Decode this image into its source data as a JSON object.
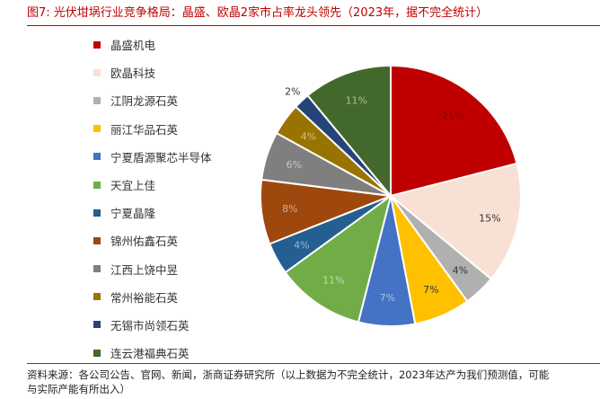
{
  "title": "图7:  光伏坩埚行业竞争格局：晶盛、欧晶2家市占率龙头领先（2023年，据不完全统计）",
  "chart_data": {
    "type": "pie",
    "title": "",
    "legend_position": "left",
    "data_labels": [
      "21%",
      "15%",
      "4%",
      "7%",
      "7%",
      "11%",
      "4%",
      "8%",
      "6%",
      "4%",
      "2%",
      "11%"
    ],
    "slices": [
      {
        "label": "晶盛机电",
        "value": 21,
        "color": "#c00000"
      },
      {
        "label": "欧晶科技",
        "value": 15,
        "color": "#f9e0d4"
      },
      {
        "label": "江阴龙源石英",
        "value": 4,
        "color": "#b0b0b0"
      },
      {
        "label": "丽江华品石英",
        "value": 7,
        "color": "#ffc000"
      },
      {
        "label": "宁夏盾源聚芯半导体",
        "value": 7,
        "color": "#4472c4"
      },
      {
        "label": "天宜上佳",
        "value": 11,
        "color": "#70ad47"
      },
      {
        "label": "宁夏晶隆",
        "value": 4,
        "color": "#255e91"
      },
      {
        "label": "锦州佑鑫石英",
        "value": 8,
        "color": "#9e480e"
      },
      {
        "label": "江西上饶中昱",
        "value": 6,
        "color": "#7f7f7f"
      },
      {
        "label": "常州裕能石英",
        "value": 4,
        "color": "#997300"
      },
      {
        "label": "无锡市尚领石英",
        "value": 2,
        "color": "#264478"
      },
      {
        "label": "连云港福典石英",
        "value": 11,
        "color": "#43682b"
      }
    ]
  },
  "footer": {
    "line1": "资料来源：各公司公告、官网、新闻，浙商证券研究所（以上数据为不完全统计，2023年达产为我们预测值，可能",
    "line2": "与实际产能有所出入）"
  }
}
